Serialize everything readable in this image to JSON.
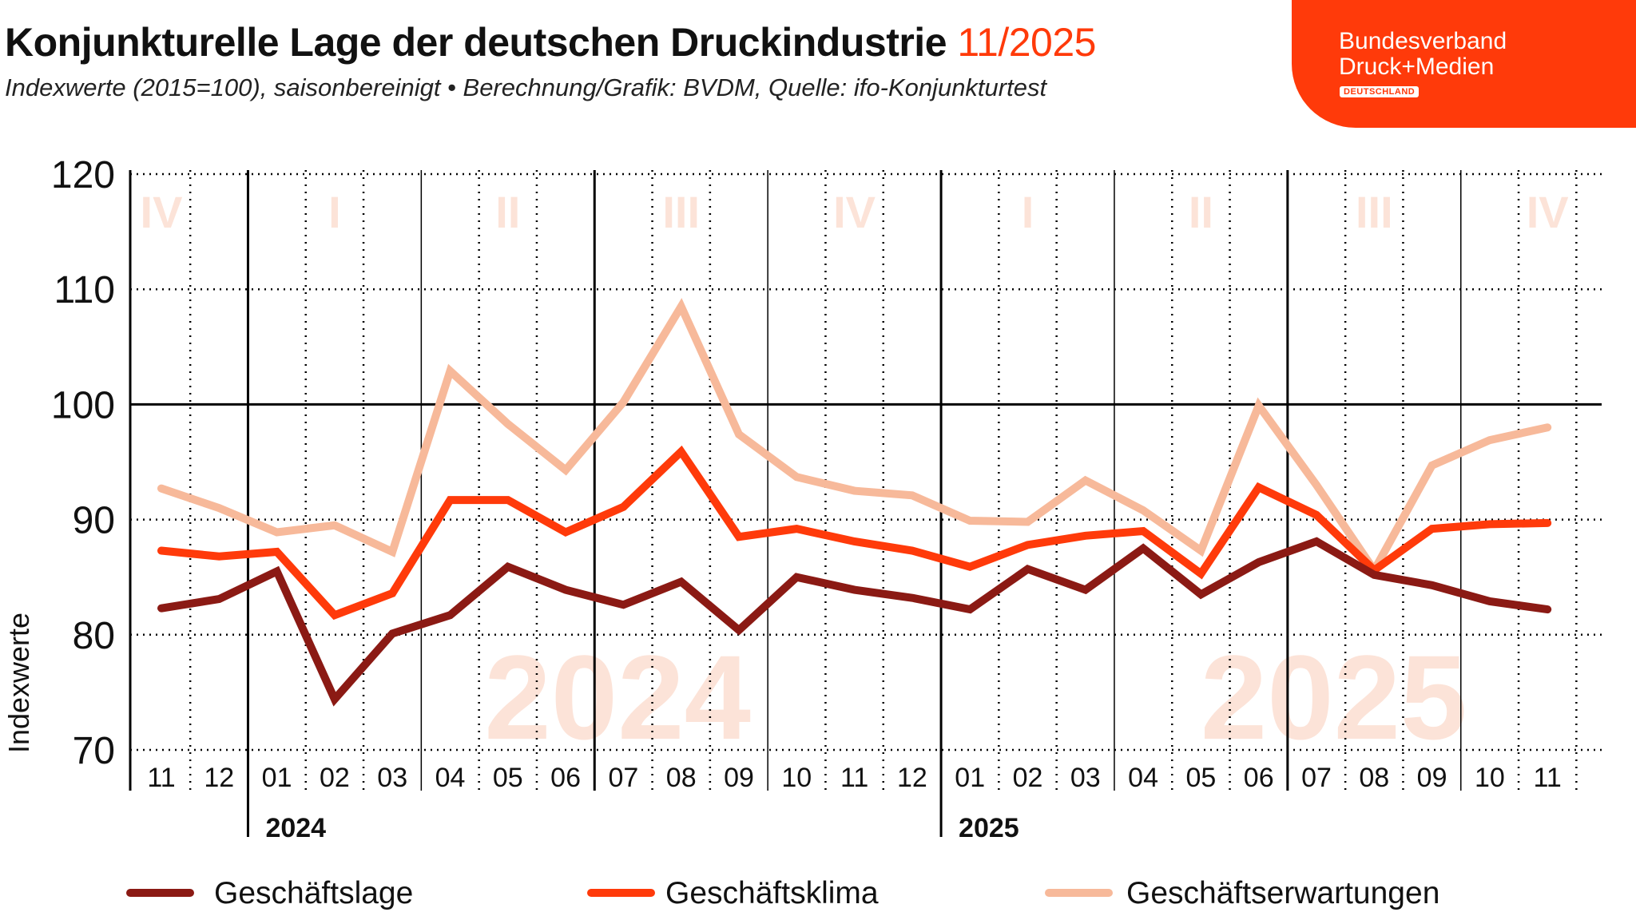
{
  "header": {
    "title": "Konjunkturelle Lage der deutschen Druckindustrie",
    "title_date": "11/2025",
    "subtitle": "Indexwerte (2015=100), saisonbereinigt • Berechnung/Grafik: BVDM, Quelle: ifo-Konjunkturtest"
  },
  "logo": {
    "line1": "Bundesverband",
    "line2": "Druck+Medien",
    "badge": "DEUTSCHLAND",
    "color": "#ff3a0a"
  },
  "chart_data": {
    "type": "line",
    "title": "Konjunkturelle Lage der deutschen Druckindustrie 11/2025",
    "ylabel": "Indexwerte",
    "xlabel": "",
    "ylim": [
      70,
      120
    ],
    "yticks": [
      "70",
      "80",
      "90",
      "100",
      "110",
      "120"
    ],
    "grid": true,
    "legend": "bottom",
    "categories": [
      "11",
      "12",
      "01",
      "02",
      "03",
      "04",
      "05",
      "06",
      "07",
      "08",
      "09",
      "10",
      "11",
      "12",
      "01",
      "02",
      "03",
      "04",
      "05",
      "06",
      "07",
      "08",
      "09",
      "10",
      "11"
    ],
    "year_labels": [
      {
        "label": "2024",
        "start": 2
      },
      {
        "label": "2025",
        "start": 14
      }
    ],
    "quarters": [
      {
        "label": "IV",
        "center": 0
      },
      {
        "label": "I",
        "center": 3
      },
      {
        "label": "II",
        "center": 6
      },
      {
        "label": "III",
        "center": 9
      },
      {
        "label": "IV",
        "center": 12
      },
      {
        "label": "I",
        "center": 15
      },
      {
        "label": "II",
        "center": 18
      },
      {
        "label": "III",
        "center": 21
      },
      {
        "label": "IV",
        "center": 24
      }
    ],
    "watermarks": [
      {
        "label": "2024",
        "center": 7.9
      },
      {
        "label": "2025",
        "center": 20.3
      }
    ],
    "series": [
      {
        "name": "Geschäftslage",
        "color": "#8b1a14",
        "values": [
          82.3,
          83.1,
          85.5,
          74.4,
          80.1,
          81.7,
          85.9,
          83.9,
          82.6,
          84.6,
          80.4,
          85.0,
          83.9,
          83.2,
          82.2,
          85.7,
          83.9,
          87.5,
          83.5,
          86.3,
          88.1,
          85.2,
          84.3,
          82.9,
          82.2
        ]
      },
      {
        "name": "Geschäftsklima",
        "color": "#ff3a0a",
        "values": [
          87.3,
          86.8,
          87.2,
          81.7,
          83.6,
          91.7,
          91.7,
          88.9,
          91.1,
          95.9,
          88.5,
          89.2,
          88.1,
          87.3,
          85.9,
          87.8,
          88.6,
          89.0,
          85.3,
          92.8,
          90.4,
          85.6,
          89.2,
          89.6,
          89.7
        ]
      },
      {
        "name": "Geschäftserwartungen",
        "color": "#f7b99a",
        "values": [
          92.7,
          91.0,
          88.9,
          89.5,
          87.2,
          102.9,
          98.3,
          94.3,
          100.2,
          108.5,
          97.4,
          93.7,
          92.5,
          92.1,
          89.9,
          89.8,
          93.4,
          90.8,
          87.3,
          99.9,
          93.0,
          85.6,
          94.7,
          96.9,
          98.0
        ]
      }
    ]
  }
}
